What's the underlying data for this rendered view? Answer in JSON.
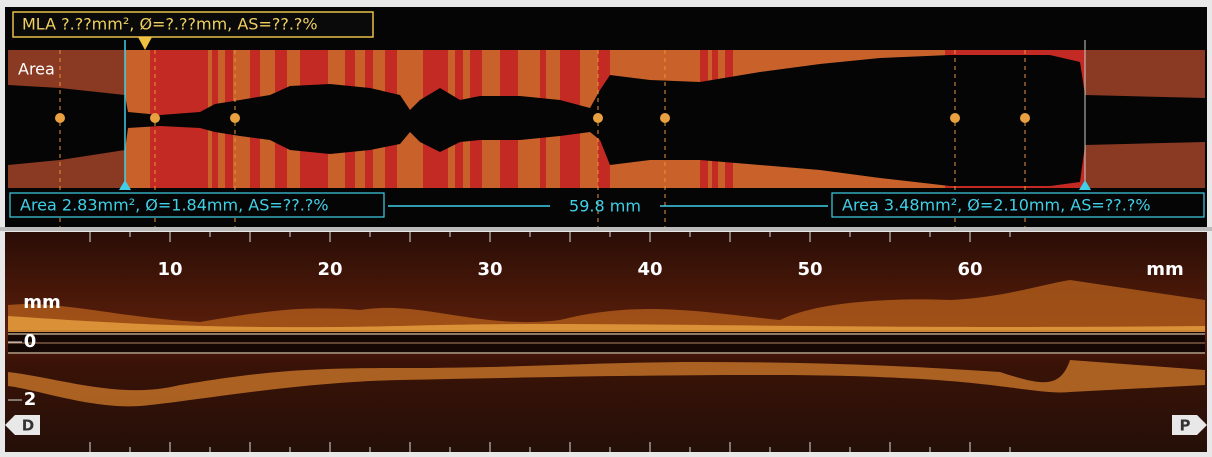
{
  "header": {
    "mla": "MLA ?.??mm², Ø=?.??mm, AS=??.?%",
    "panel_label": "Area"
  },
  "measure": {
    "left": "Area 2.83mm², Ø=1.84mm, AS=??.?%",
    "length": "59.8 mm",
    "right": "Area 3.48mm², Ø=2.10mm, AS=??.?%"
  },
  "ruler": {
    "labels": [
      10,
      20,
      30,
      40,
      50,
      60
    ],
    "unit": "mm"
  },
  "depth": {
    "unit": "mm",
    "labels": [
      0,
      2
    ]
  },
  "ends": {
    "distal": "D",
    "proximal": "P"
  }
}
